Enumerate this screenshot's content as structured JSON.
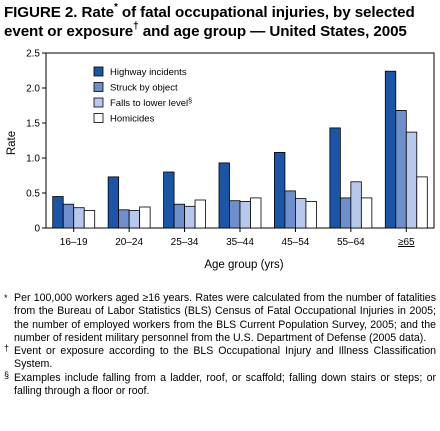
{
  "title_prefix": "FIGURE 2. Rate",
  "title_mark1": "*",
  "title_mid": " of fatal occupational injuries, by selected event or exposure",
  "title_mark2": "†",
  "title_suffix": " and age group — United States, 2005",
  "chart_data": {
    "type": "bar",
    "categories": [
      "16–19",
      "20–24",
      "25–34",
      "35–44",
      "45–54",
      "55–64",
      "≥65"
    ],
    "series": [
      {
        "name": "Highway incidents",
        "color": "#1a55a8",
        "values": [
          0.45,
          0.73,
          0.8,
          0.93,
          1.08,
          1.43,
          2.24
        ]
      },
      {
        "name": "Struck by object",
        "color": "#6f8fcc",
        "values": [
          0.34,
          0.26,
          0.34,
          0.39,
          0.53,
          0.43,
          1.68
        ]
      },
      {
        "name": "Falls to lower level",
        "legend_mark": "§",
        "color": "#b7c8ec",
        "values": [
          0.29,
          0.25,
          0.31,
          0.38,
          0.42,
          0.66,
          1.37
        ]
      },
      {
        "name": "Homicides",
        "color": "#ffffff",
        "values": [
          0.25,
          0.3,
          0.4,
          0.43,
          0.38,
          0.43,
          0.73
        ]
      }
    ],
    "xlabel": "Age group (yrs)",
    "ylabel": "Rate",
    "ylim": [
      0,
      2.5
    ],
    "yticks": [
      "0",
      "0.5",
      "1.0",
      "1.5",
      "2.0",
      "2.5"
    ],
    "grid": false,
    "legend_position": "top-left"
  },
  "footnotes": [
    {
      "mark": "*",
      "text": "Per 100,000 workers aged ≥16 years. Rates were calculated from the number of fatalities from the Bureau of Labor Statistics (BLS) Census of Fatal Occupational Injuries in 2005; the number of employed workers from the BLS Current Population Survey, 2005; and the number of resident military personnel from the U.S. Department of Defense (2005 data)."
    },
    {
      "mark": "†",
      "text": "Event or exposure according to the BLS Occupational Injury and Illness Classification System."
    },
    {
      "mark": "§",
      "text": "Examples include falling from a ladder, roof, or scaffold; falling down stairs or steps; or falling through a floor or roof."
    }
  ]
}
